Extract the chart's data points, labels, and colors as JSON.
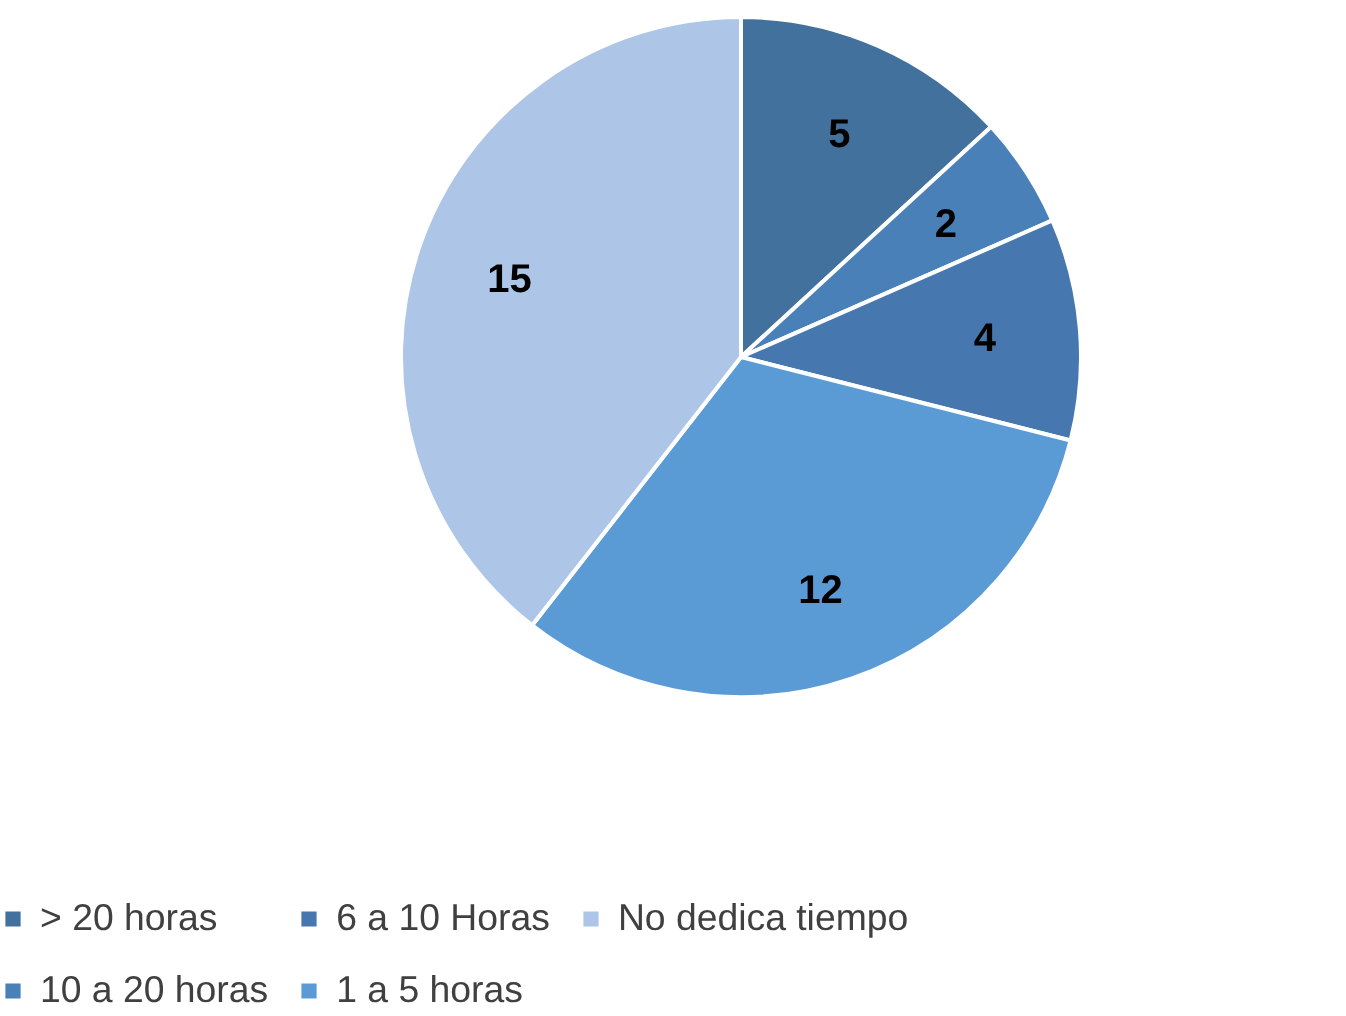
{
  "chart_data": {
    "type": "pie",
    "categories": [
      "> 20 horas",
      "10 a 20 horas",
      "6 a 10 Horas",
      "1 a 5 horas",
      "No dedica tiempo"
    ],
    "values": [
      5,
      2,
      4,
      12,
      15
    ],
    "colors": [
      "#41719c",
      "#4a80b8",
      "#4677ae",
      "#5b9bd5",
      "#adc5e7"
    ],
    "data_labels": true,
    "legend": "bottom"
  }
}
